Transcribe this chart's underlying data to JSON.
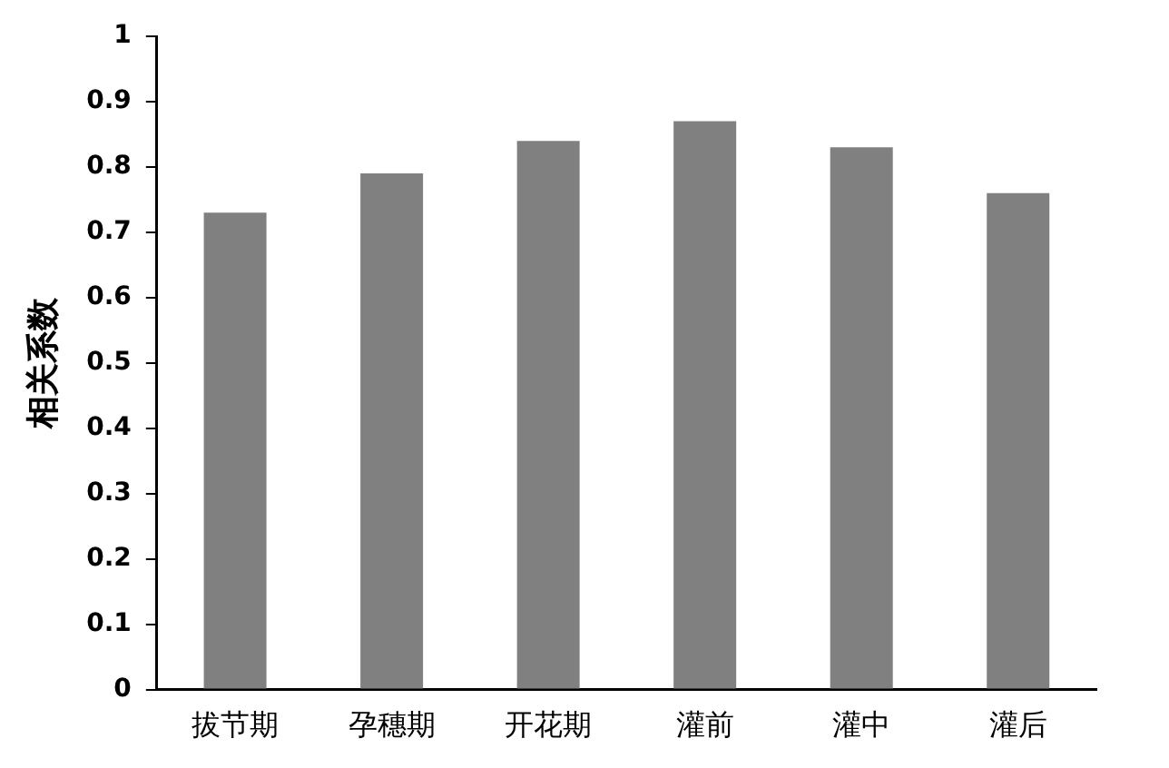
{
  "chart_data": {
    "type": "bar",
    "ylabel": "相关系数",
    "categories": [
      "拔节期",
      "孕穗期",
      "开花期",
      "灌前",
      "灌中",
      "灌后"
    ],
    "values": [
      0.73,
      0.79,
      0.84,
      0.87,
      0.83,
      0.76
    ],
    "color": "#808080",
    "ylim": [
      0,
      1
    ],
    "yticks": [
      0,
      0.1,
      0.2,
      0.3,
      0.4,
      0.5,
      0.6,
      0.7,
      0.8,
      0.9,
      1
    ],
    "grid": false,
    "legend": false
  }
}
